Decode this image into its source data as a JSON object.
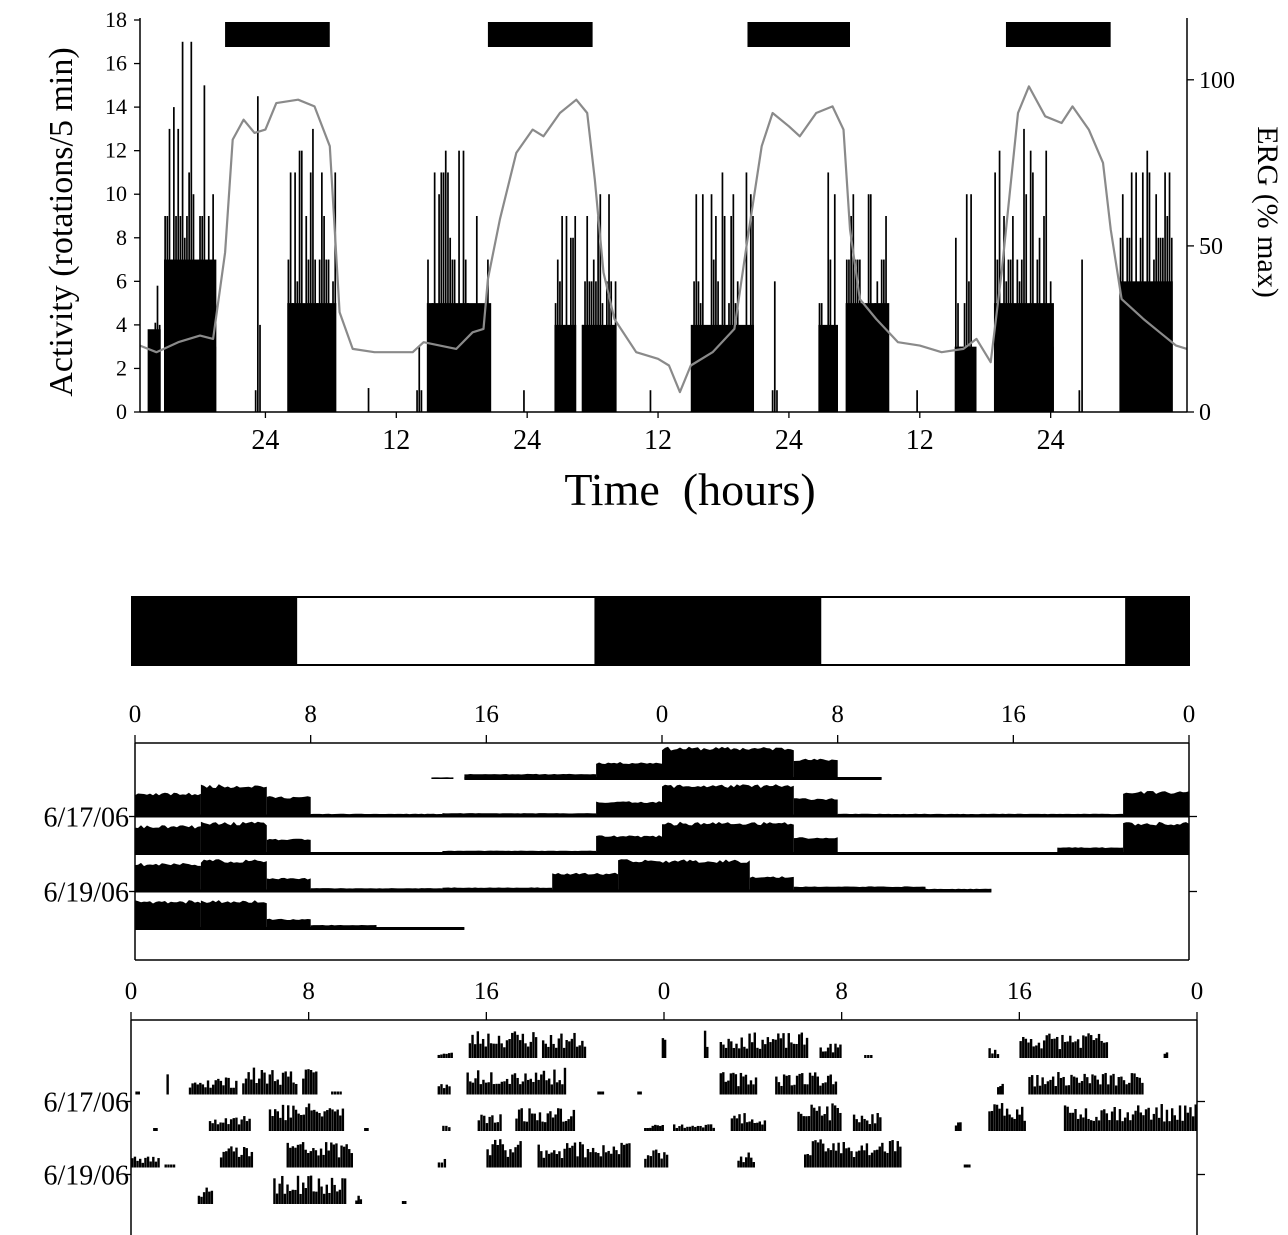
{
  "chart_data": [
    {
      "type": "bar",
      "title": "",
      "xlabel": "Time  (hours)",
      "ylabel_left": "Activity (rotations/5 min)",
      "ylabel_right": "ERG (% max)",
      "ylim_left": [
        0,
        18
      ],
      "ylim_right": [
        0,
        118
      ],
      "yticks_left": [
        0,
        2,
        4,
        6,
        8,
        10,
        12,
        14,
        16,
        18
      ],
      "yticks_right": [
        0,
        50,
        100
      ],
      "xticks": [
        {
          "h": 24,
          "label": "24"
        },
        {
          "h": 36,
          "label": "12"
        },
        {
          "h": 48,
          "label": "24"
        },
        {
          "h": 60,
          "label": "12"
        },
        {
          "h": 72,
          "label": "24"
        },
        {
          "h": 84,
          "label": "12"
        },
        {
          "h": 96,
          "label": "24"
        }
      ],
      "xlim": [
        12.5,
        108.5
      ],
      "dark_periods_h": [
        [
          20.3,
          29.9
        ],
        [
          44.4,
          54.0
        ],
        [
          68.2,
          77.6
        ],
        [
          91.9,
          101.5
        ]
      ],
      "activity_bouts": [
        {
          "start": 13.2,
          "end": 14.4,
          "level": 3.8,
          "peak": 4.1
        },
        {
          "start": 14.7,
          "end": 19.5,
          "level": 7,
          "peak": 17
        },
        {
          "start": 23.0,
          "end": 23.6,
          "level": 0,
          "peak": 14.5
        },
        {
          "start": 26.0,
          "end": 30.5,
          "level": 5,
          "peak": 13
        },
        {
          "start": 33.3,
          "end": 33.6,
          "level": 0,
          "peak": 1.1
        },
        {
          "start": 37.8,
          "end": 38.4,
          "level": 0,
          "peak": 3
        },
        {
          "start": 38.8,
          "end": 44.7,
          "level": 5,
          "peak": 12
        },
        {
          "start": 47.4,
          "end": 47.8,
          "level": 0,
          "peak": 1
        },
        {
          "start": 50.5,
          "end": 52.5,
          "level": 4,
          "peak": 9
        },
        {
          "start": 53.0,
          "end": 56.2,
          "level": 4,
          "peak": 10
        },
        {
          "start": 59.0,
          "end": 59.6,
          "level": 0,
          "peak": 1
        },
        {
          "start": 63.0,
          "end": 68.8,
          "level": 4,
          "peak": 11
        },
        {
          "start": 70.4,
          "end": 71.0,
          "level": 0,
          "peak": 6
        },
        {
          "start": 74.7,
          "end": 76.5,
          "level": 4,
          "peak": 11
        },
        {
          "start": 77.2,
          "end": 81.2,
          "level": 5,
          "peak": 10
        },
        {
          "start": 83.6,
          "end": 83.9,
          "level": 0,
          "peak": 1
        },
        {
          "start": 87.2,
          "end": 89.2,
          "level": 3,
          "peak": 10
        },
        {
          "start": 90.8,
          "end": 96.3,
          "level": 5,
          "peak": 13
        },
        {
          "start": 98.5,
          "end": 99.0,
          "level": 0,
          "peak": 7
        },
        {
          "start": 102.3,
          "end": 107.2,
          "level": 6,
          "peak": 12
        }
      ],
      "erg_series": {
        "name": "",
        "points": [
          [
            12.5,
            20
          ],
          [
            14.0,
            18
          ],
          [
            16.0,
            21
          ],
          [
            18.0,
            23
          ],
          [
            19.2,
            22
          ],
          [
            20.3,
            48
          ],
          [
            21.0,
            82
          ],
          [
            22.0,
            88
          ],
          [
            23.0,
            84
          ],
          [
            24.0,
            85
          ],
          [
            25.0,
            93
          ],
          [
            27.0,
            94
          ],
          [
            28.5,
            92
          ],
          [
            29.9,
            80
          ],
          [
            30.8,
            30
          ],
          [
            32.0,
            19
          ],
          [
            34.0,
            18
          ],
          [
            36.0,
            18
          ],
          [
            37.5,
            18
          ],
          [
            38.5,
            21
          ],
          [
            40.0,
            20
          ],
          [
            41.5,
            19
          ],
          [
            43.0,
            24
          ],
          [
            44.0,
            25
          ],
          [
            44.4,
            40
          ],
          [
            45.5,
            58
          ],
          [
            47.0,
            78
          ],
          [
            48.5,
            85
          ],
          [
            49.5,
            83
          ],
          [
            51.0,
            90
          ],
          [
            52.5,
            94
          ],
          [
            53.5,
            90
          ],
          [
            54.2,
            70
          ],
          [
            55.0,
            42
          ],
          [
            56.0,
            28
          ],
          [
            58.0,
            18
          ],
          [
            60.0,
            16
          ],
          [
            61.0,
            14
          ],
          [
            62.0,
            6
          ],
          [
            63.0,
            14
          ],
          [
            65.0,
            18
          ],
          [
            67.0,
            25
          ],
          [
            68.2,
            52
          ],
          [
            69.5,
            80
          ],
          [
            70.5,
            90
          ],
          [
            72.0,
            86
          ],
          [
            73.0,
            83
          ],
          [
            74.5,
            90
          ],
          [
            76.0,
            92
          ],
          [
            77.0,
            85
          ],
          [
            77.6,
            55
          ],
          [
            78.5,
            34
          ],
          [
            80.0,
            28
          ],
          [
            82.0,
            21
          ],
          [
            84.0,
            20
          ],
          [
            86.0,
            18
          ],
          [
            88.0,
            19
          ],
          [
            89.2,
            22
          ],
          [
            90.5,
            15
          ],
          [
            91.5,
            42
          ],
          [
            93.0,
            90
          ],
          [
            94.0,
            98
          ],
          [
            95.5,
            89
          ],
          [
            97.0,
            87
          ],
          [
            98.0,
            92
          ],
          [
            99.5,
            85
          ],
          [
            100.8,
            75
          ],
          [
            101.5,
            55
          ],
          [
            102.5,
            34
          ],
          [
            104.5,
            28
          ],
          [
            106.0,
            24
          ],
          [
            107.5,
            20
          ],
          [
            108.5,
            19
          ]
        ]
      }
    },
    {
      "type": "actogram",
      "title": "",
      "light_dark_bar": [
        {
          "from": 0,
          "to": 7.5,
          "state": "dark"
        },
        {
          "from": 7.5,
          "to": 21,
          "state": "light"
        },
        {
          "from": 21,
          "to": 31.3,
          "state": "dark"
        },
        {
          "from": 31.3,
          "to": 45.1,
          "state": "light"
        },
        {
          "from": 45.1,
          "to": 48,
          "state": "dark"
        }
      ],
      "xticks": [
        {
          "h": 0,
          "label": "0"
        },
        {
          "h": 8,
          "label": "8"
        },
        {
          "h": 16,
          "label": "16"
        },
        {
          "h": 24,
          "label": "0"
        },
        {
          "h": 32,
          "label": "8"
        },
        {
          "h": 40,
          "label": "16"
        },
        {
          "h": 48,
          "label": "0"
        }
      ],
      "row_labels": [
        {
          "row": 1,
          "label": "6/17/06"
        },
        {
          "row": 3,
          "label": "6/19/06"
        }
      ],
      "rows": [
        {
          "start": 15,
          "end": 34,
          "segments": [
            [
              13.5,
              14.5,
              0.05
            ],
            [
              15,
              21,
              0.15
            ],
            [
              21,
              24,
              0.5
            ],
            [
              24,
              30,
              0.95
            ],
            [
              30,
              32,
              0.6
            ],
            [
              32,
              34,
              0.05
            ]
          ]
        },
        {
          "start": 0,
          "end": 48,
          "segments": [
            [
              0,
              3,
              0.7
            ],
            [
              3,
              6,
              0.95
            ],
            [
              6,
              8,
              0.6
            ],
            [
              8,
              14,
              0.08
            ],
            [
              14,
              21,
              0.1
            ],
            [
              21,
              24,
              0.45
            ],
            [
              24,
              30,
              0.95
            ],
            [
              30,
              32,
              0.55
            ],
            [
              32,
              38,
              0.08
            ],
            [
              38,
              45,
              0.08
            ],
            [
              45,
              48,
              0.75
            ]
          ]
        },
        {
          "start": 0,
          "end": 48,
          "segments": [
            [
              0,
              3,
              0.85
            ],
            [
              3,
              6,
              0.95
            ],
            [
              6,
              8,
              0.45
            ],
            [
              8,
              14,
              0.05
            ],
            [
              14,
              21,
              0.1
            ],
            [
              21,
              24,
              0.55
            ],
            [
              24,
              30,
              0.95
            ],
            [
              30,
              32,
              0.5
            ],
            [
              32,
              42,
              0.05
            ],
            [
              42,
              45,
              0.2
            ],
            [
              45,
              48,
              0.95
            ]
          ]
        },
        {
          "start": 0,
          "end": 39,
          "segments": [
            [
              0,
              3,
              0.85
            ],
            [
              3,
              6,
              0.95
            ],
            [
              6,
              8,
              0.4
            ],
            [
              8,
              14,
              0.1
            ],
            [
              14,
              19,
              0.12
            ],
            [
              19,
              22,
              0.55
            ],
            [
              22,
              28,
              0.95
            ],
            [
              28,
              30,
              0.45
            ],
            [
              30,
              36,
              0.15
            ],
            [
              36,
              39,
              0.08
            ]
          ]
        },
        {
          "start": 0,
          "end": 15,
          "segments": [
            [
              0,
              3,
              0.85
            ],
            [
              3,
              6,
              0.85
            ],
            [
              6,
              8,
              0.3
            ],
            [
              8,
              11,
              0.12
            ],
            [
              11,
              15,
              0.02
            ]
          ]
        }
      ]
    },
    {
      "type": "actogram",
      "title": "",
      "xticks": [
        {
          "h": 0,
          "label": "0"
        },
        {
          "h": 8,
          "label": "8"
        },
        {
          "h": 16,
          "label": "16"
        },
        {
          "h": 24,
          "label": "0"
        },
        {
          "h": 32,
          "label": "8"
        },
        {
          "h": 40,
          "label": "16"
        },
        {
          "h": 48,
          "label": "0"
        }
      ],
      "row_labels": [
        {
          "row": 1,
          "label": "6/17/06"
        },
        {
          "row": 3,
          "label": "6/19/06"
        }
      ],
      "rows": [
        {
          "bouts": [
            [
              13.8,
              14.5,
              0.2
            ],
            [
              15.2,
              18.3,
              0.95
            ],
            [
              18.5,
              20.5,
              0.85
            ],
            [
              23.9,
              24.1,
              0.85
            ],
            [
              25.8,
              26.0,
              0.95
            ],
            [
              26.5,
              30.5,
              0.85
            ],
            [
              31,
              32,
              0.5
            ],
            [
              33,
              33.4,
              0.1
            ],
            [
              38.6,
              39.1,
              0.35
            ],
            [
              40,
              44,
              0.85
            ],
            [
              46.5,
              46.7,
              0.2
            ]
          ]
        },
        {
          "bouts": [
            [
              0.2,
              0.4,
              0.1
            ],
            [
              1.6,
              1.7,
              0.95
            ],
            [
              2.6,
              4.8,
              0.6
            ],
            [
              5,
              7.5,
              0.9
            ],
            [
              7.7,
              8.4,
              0.85
            ],
            [
              9,
              9.5,
              0.1
            ],
            [
              13.8,
              14.4,
              0.4
            ],
            [
              15.1,
              19.6,
              0.9
            ],
            [
              21,
              21.3,
              0.1
            ],
            [
              22.8,
              23,
              0.1
            ],
            [
              26.5,
              28.2,
              0.75
            ],
            [
              29,
              31.8,
              0.8
            ],
            [
              39,
              39.3,
              0.4
            ],
            [
              40.4,
              45.6,
              0.75
            ]
          ]
        },
        {
          "bouts": [
            [
              1,
              1.2,
              0.1
            ],
            [
              3.5,
              5.4,
              0.6
            ],
            [
              6.2,
              9.6,
              0.95
            ],
            [
              10.5,
              10.7,
              0.1
            ],
            [
              14,
              14.4,
              0.2
            ],
            [
              15.6,
              16.7,
              0.7
            ],
            [
              17.3,
              20,
              0.8
            ],
            [
              23.1,
              24,
              0.25
            ],
            [
              24.4,
              26.3,
              0.25
            ],
            [
              27,
              28.6,
              0.6
            ],
            [
              30,
              32,
              0.95
            ],
            [
              32.5,
              33.8,
              0.6
            ],
            [
              37.1,
              37.4,
              0.3
            ],
            [
              38.6,
              40.3,
              0.95
            ],
            [
              42,
              48,
              0.9
            ]
          ]
        },
        {
          "bouts": [
            [
              0,
              1.3,
              0.4
            ],
            [
              1.5,
              2,
              0.1
            ],
            [
              4,
              5.5,
              0.8
            ],
            [
              7,
              10,
              0.9
            ],
            [
              13.8,
              14.2,
              0.3
            ],
            [
              16,
              17.6,
              0.95
            ],
            [
              18.3,
              22.5,
              0.9
            ],
            [
              23.1,
              24.2,
              0.6
            ],
            [
              27.3,
              28.1,
              0.5
            ],
            [
              30.3,
              34.7,
              0.95
            ],
            [
              37.5,
              37.8,
              0.1
            ]
          ]
        },
        {
          "bouts": [
            [
              3,
              3.7,
              0.6
            ],
            [
              6.4,
              9.7,
              0.95
            ],
            [
              10.1,
              10.4,
              0.3
            ],
            [
              12.2,
              12.4,
              0.1
            ]
          ]
        }
      ]
    }
  ]
}
